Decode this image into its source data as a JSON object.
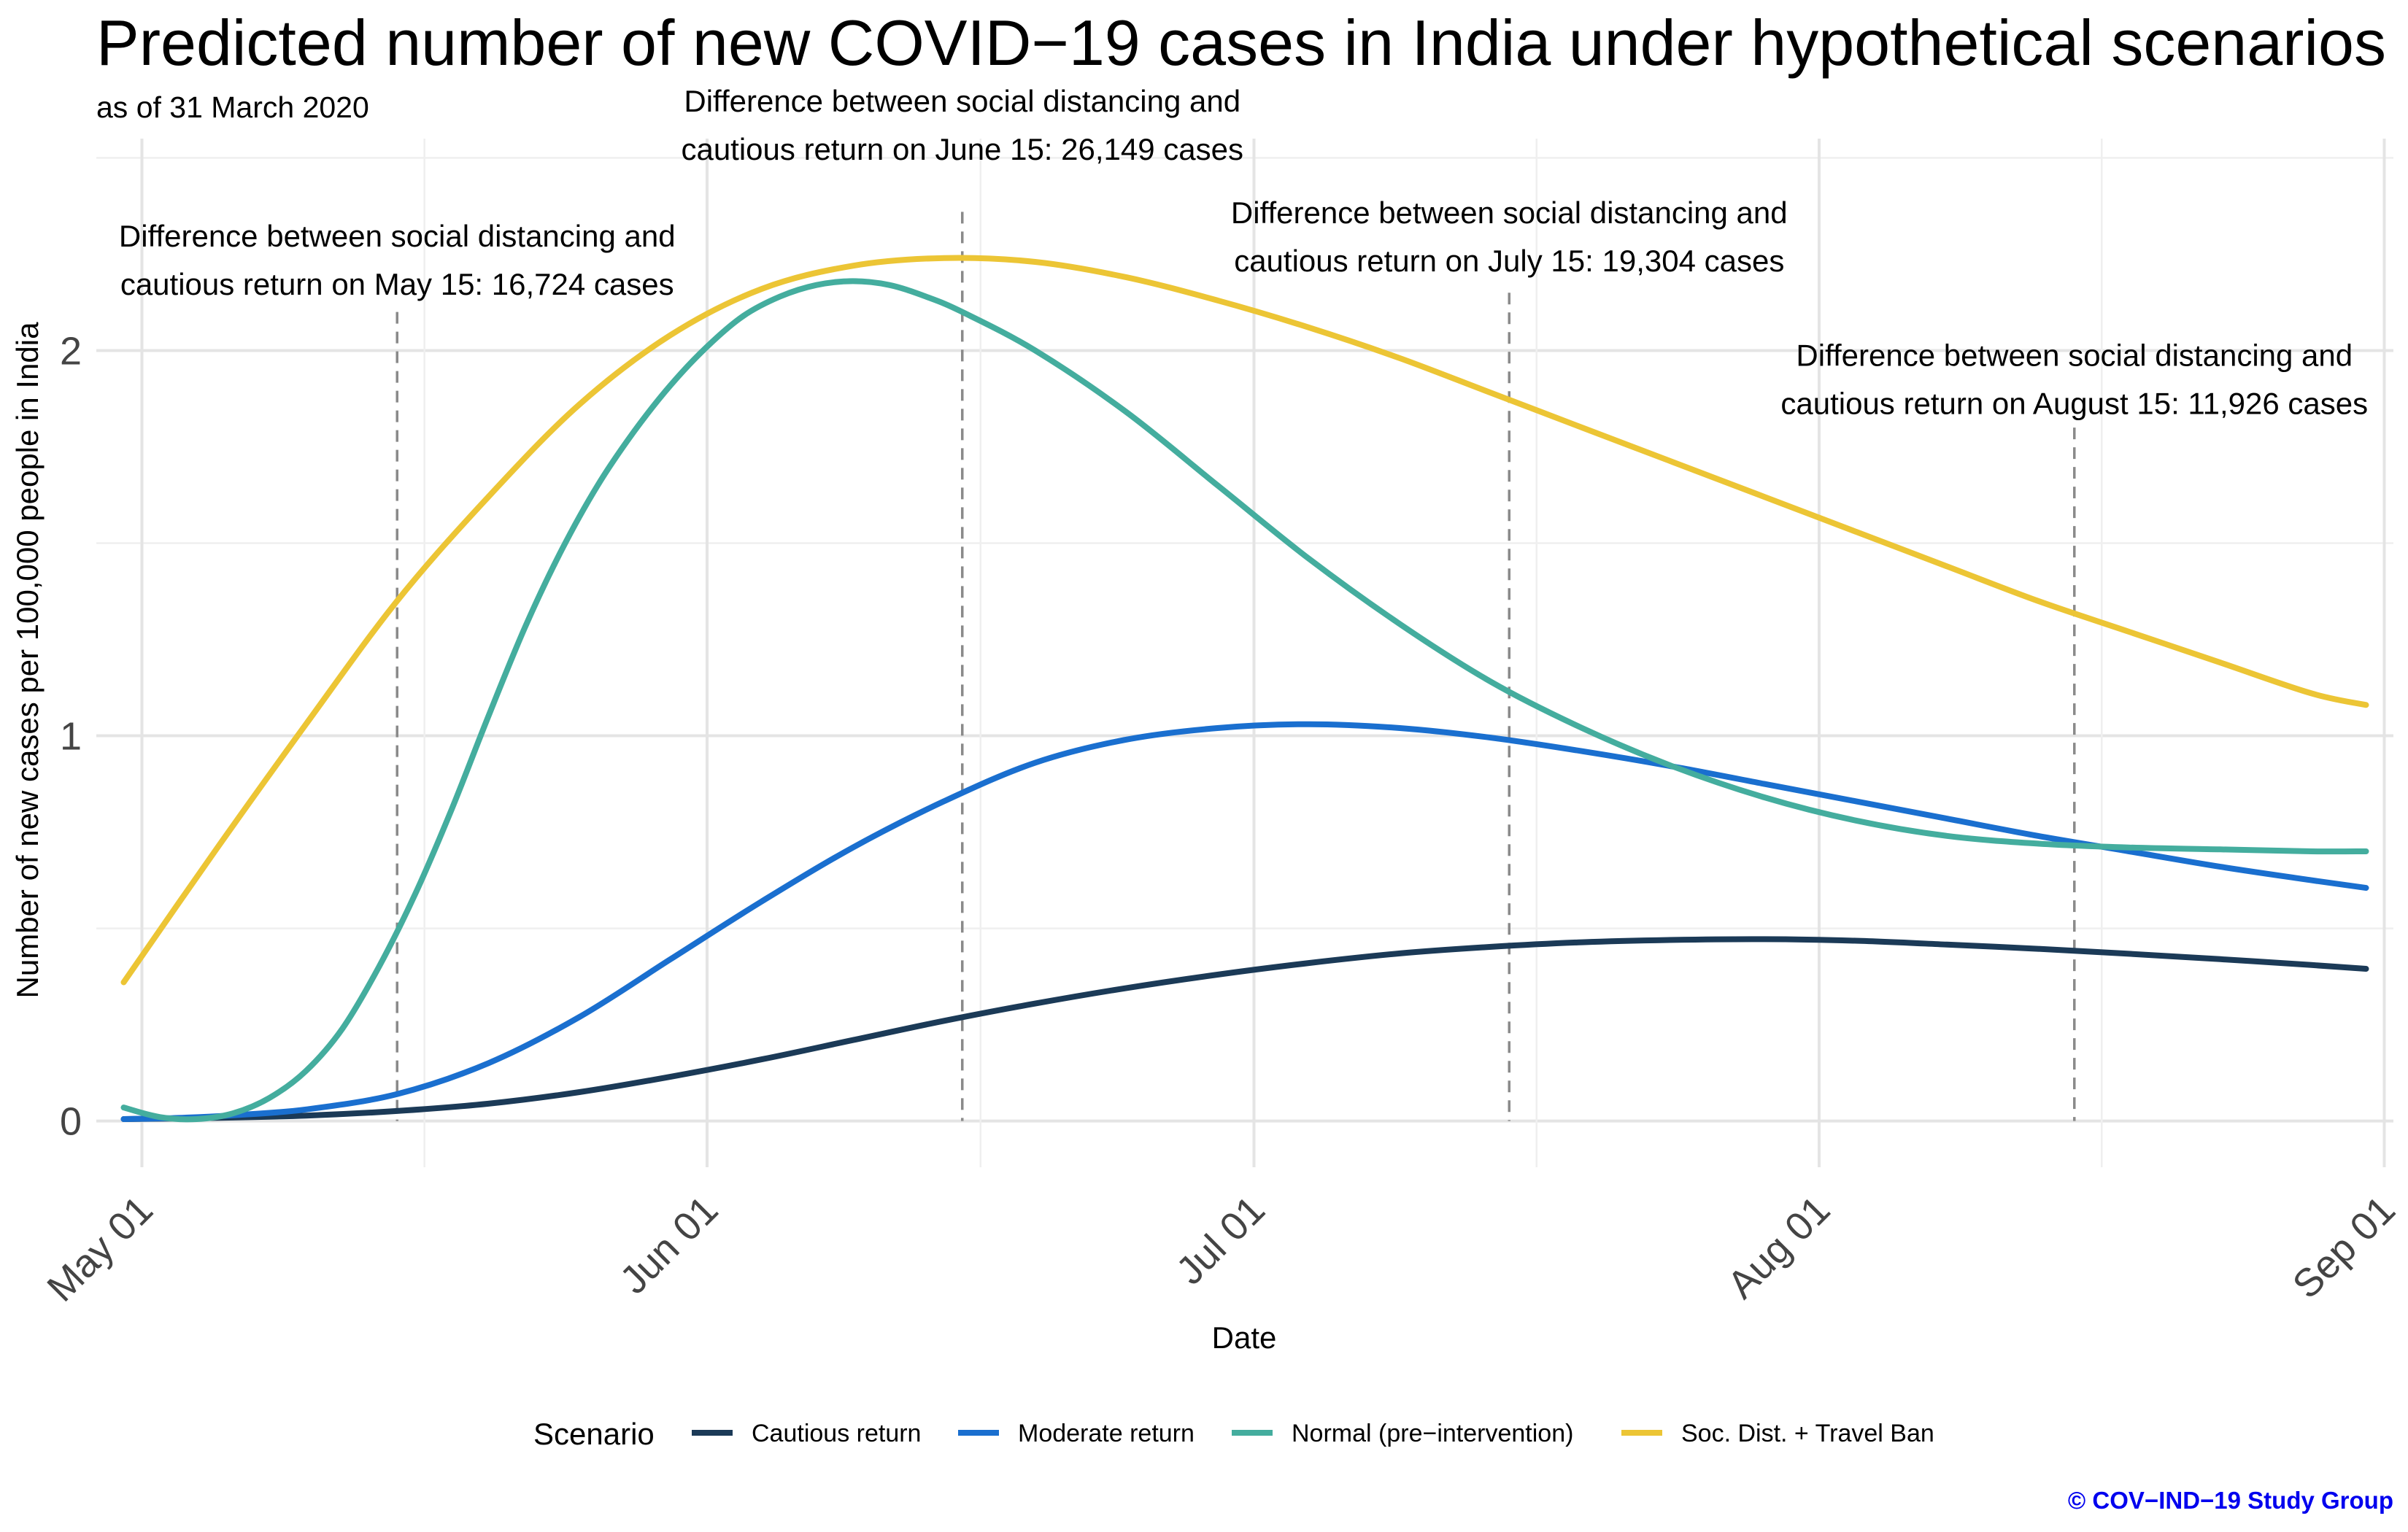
{
  "header": {
    "title": "Predicted number of new COVID−19 cases in India under hypothetical scenarios",
    "subtitle": "as of 31 March 2020"
  },
  "credit": "© COV−IND−19 Study Group",
  "chart_data": {
    "type": "line",
    "title": "Predicted number of new COVID−19 cases in India under hypothetical scenarios",
    "subtitle": "as of 31 March 2020",
    "xlabel": "Date",
    "ylabel": "Number of new cases per 100,000 people in India",
    "x_tick_labels": [
      "May 01",
      "Jun 01",
      "Jul 01",
      "Aug 01",
      "Sep 01"
    ],
    "x_tick_days": [
      31,
      62,
      92,
      123,
      154
    ],
    "y_ticks": [
      0,
      1,
      2
    ],
    "ylim": [
      -0.12,
      2.55
    ],
    "xlim_days": [
      28.5,
      154.5
    ],
    "grid": true,
    "legend_title": "Scenario",
    "legend_position": "bottom",
    "x_day_origin": "2020-03-31",
    "series": [
      {
        "name": "Cautious return",
        "color": "#1b3a57",
        "x": [
          30,
          35,
          40,
          45,
          50,
          55,
          60,
          65,
          70,
          75,
          80,
          85,
          90,
          95,
          100,
          105,
          110,
          115,
          120,
          125,
          130,
          135,
          140,
          145,
          150,
          153
        ],
        "y": [
          0.005,
          0.008,
          0.014,
          0.026,
          0.045,
          0.075,
          0.115,
          0.16,
          0.21,
          0.26,
          0.305,
          0.345,
          0.38,
          0.41,
          0.435,
          0.452,
          0.464,
          0.47,
          0.472,
          0.468,
          0.458,
          0.447,
          0.434,
          0.42,
          0.405,
          0.395
        ]
      },
      {
        "name": "Moderate return",
        "color": "#1a6fcf",
        "x": [
          30,
          33,
          36,
          40,
          45,
          50,
          55,
          60,
          65,
          70,
          75,
          80,
          85,
          90,
          95,
          100,
          105,
          110,
          115,
          120,
          125,
          130,
          135,
          140,
          145,
          150,
          153
        ],
        "y": [
          0.005,
          0.008,
          0.015,
          0.03,
          0.07,
          0.15,
          0.27,
          0.42,
          0.57,
          0.71,
          0.83,
          0.93,
          0.99,
          1.02,
          1.03,
          1.02,
          0.995,
          0.96,
          0.92,
          0.875,
          0.83,
          0.785,
          0.74,
          0.7,
          0.66,
          0.625,
          0.605
        ]
      },
      {
        "name": "Normal (pre−intervention)",
        "color": "#44ad9e",
        "x": [
          30,
          32,
          34,
          36,
          38,
          40,
          42,
          44,
          46,
          48,
          50,
          52,
          54,
          56,
          58,
          60,
          62,
          64,
          66,
          68,
          70,
          72,
          74,
          76,
          80,
          85,
          90,
          95,
          100,
          105,
          110,
          115,
          120,
          125,
          130,
          135,
          140,
          145,
          150,
          153
        ],
        "y": [
          0.035,
          0.01,
          0.005,
          0.02,
          0.06,
          0.13,
          0.24,
          0.4,
          0.59,
          0.81,
          1.05,
          1.28,
          1.48,
          1.65,
          1.79,
          1.91,
          2.01,
          2.09,
          2.14,
          2.17,
          2.18,
          2.17,
          2.14,
          2.1,
          2.0,
          1.84,
          1.65,
          1.46,
          1.29,
          1.14,
          1.02,
          0.92,
          0.84,
          0.78,
          0.74,
          0.72,
          0.71,
          0.705,
          0.7,
          0.7
        ]
      },
      {
        "name": "Soc. Dist. + Travel Ban",
        "color": "#ecc535",
        "x": [
          30,
          35,
          40,
          45,
          50,
          55,
          60,
          65,
          70,
          75,
          80,
          85,
          90,
          95,
          100,
          105,
          110,
          115,
          120,
          125,
          130,
          135,
          140,
          145,
          150,
          153
        ],
        "y": [
          0.36,
          0.7,
          1.03,
          1.35,
          1.62,
          1.86,
          2.04,
          2.16,
          2.22,
          2.24,
          2.23,
          2.19,
          2.13,
          2.06,
          1.98,
          1.89,
          1.8,
          1.71,
          1.62,
          1.53,
          1.44,
          1.35,
          1.27,
          1.19,
          1.11,
          1.08
        ]
      }
    ],
    "annotations": [
      {
        "lines": [
          "Difference between social distancing and",
          "cautious return on May 15: 16,724 cases"
        ],
        "day": 45,
        "text_y": 2.27
      },
      {
        "lines": [
          "Difference between social distancing and",
          "cautious return on June 15: 26,149 cases"
        ],
        "day": 76,
        "text_y": 2.62
      },
      {
        "lines": [
          "Difference between social distancing and",
          "cautious return on July 15: 19,304 cases"
        ],
        "day": 106,
        "text_y": 2.33
      },
      {
        "lines": [
          "Difference between social distancing and",
          "cautious return on August 15: 11,926 cases"
        ],
        "day": 137,
        "text_y": 1.96
      }
    ]
  }
}
